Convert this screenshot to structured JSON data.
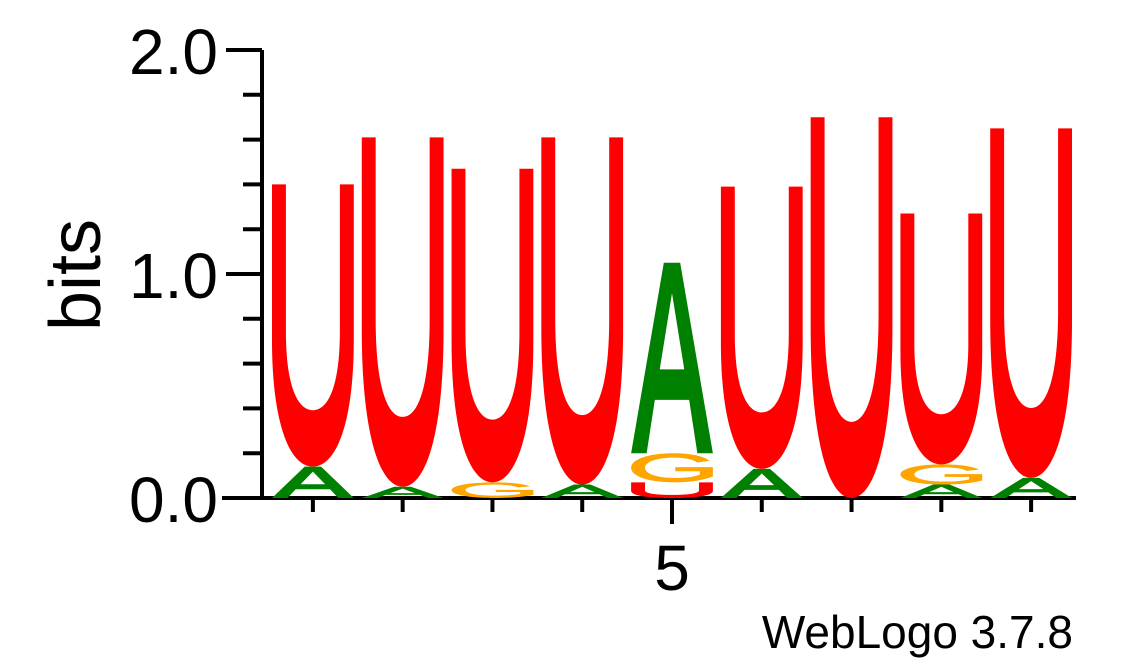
{
  "chart_data": {
    "type": "sequence-logo",
    "ylabel": "bits",
    "ylim": [
      0,
      2.0
    ],
    "y_tick_labels": [
      "0.0",
      "1.0",
      "2.0"
    ],
    "y_ticks": [
      0,
      1.0,
      2.0
    ],
    "x_tick_labels": [
      {
        "position": 5,
        "label": "5"
      }
    ],
    "positions": [
      1,
      2,
      3,
      4,
      5,
      6,
      7,
      8,
      9
    ],
    "colors": {
      "U": "#ff0000",
      "A": "#008000",
      "G": "#ffa500",
      "C": "#0000ff"
    },
    "columns": [
      {
        "position": 1,
        "stack": [
          {
            "letter": "A",
            "bits": 0.14
          },
          {
            "letter": "U",
            "bits": 1.26
          }
        ]
      },
      {
        "position": 2,
        "stack": [
          {
            "letter": "A",
            "bits": 0.05
          },
          {
            "letter": "U",
            "bits": 1.56
          }
        ]
      },
      {
        "position": 3,
        "stack": [
          {
            "letter": "G",
            "bits": 0.07
          },
          {
            "letter": "U",
            "bits": 1.4
          }
        ]
      },
      {
        "position": 4,
        "stack": [
          {
            "letter": "A",
            "bits": 0.06
          },
          {
            "letter": "U",
            "bits": 1.55
          }
        ]
      },
      {
        "position": 5,
        "stack": [
          {
            "letter": "U",
            "bits": 0.07
          },
          {
            "letter": "G",
            "bits": 0.13
          },
          {
            "letter": "A",
            "bits": 0.85
          }
        ]
      },
      {
        "position": 6,
        "stack": [
          {
            "letter": "A",
            "bits": 0.13
          },
          {
            "letter": "U",
            "bits": 1.26
          }
        ]
      },
      {
        "position": 7,
        "stack": [
          {
            "letter": "U",
            "bits": 1.7
          }
        ]
      },
      {
        "position": 8,
        "stack": [
          {
            "letter": "A",
            "bits": 0.06
          },
          {
            "letter": "G",
            "bits": 0.09
          },
          {
            "letter": "U",
            "bits": 1.12
          }
        ]
      },
      {
        "position": 9,
        "stack": [
          {
            "letter": "A",
            "bits": 0.09
          },
          {
            "letter": "U",
            "bits": 1.56
          }
        ]
      }
    ]
  },
  "footer": {
    "credit": "WebLogo 3.7.8"
  }
}
